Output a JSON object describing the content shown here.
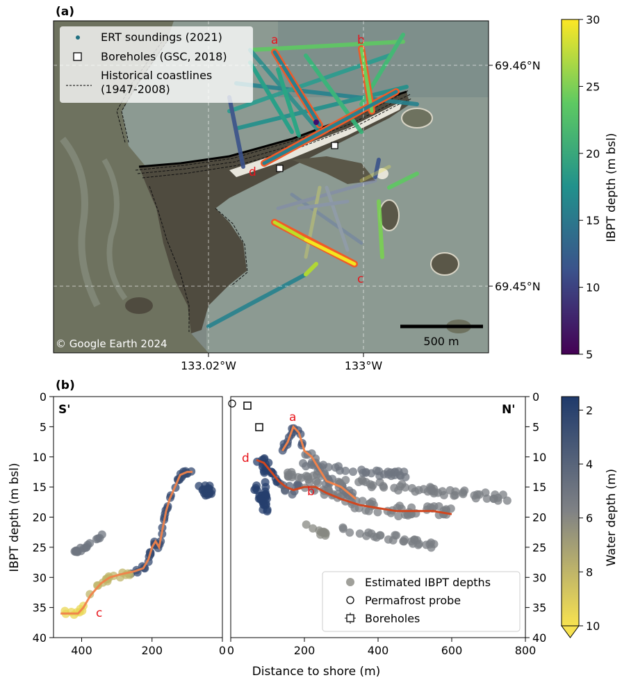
{
  "chart_data": [
    {
      "type": "map",
      "panel_label": "(a)",
      "legend": {
        "ert": "ERT soundings (2021)",
        "boreholes": "Boreholes (GSC, 2018)",
        "coast_line1": "Historical coastlines",
        "coast_line2": "(1947-2008)"
      },
      "lat_ticks": [
        "69.46°N",
        "69.45°N"
      ],
      "lon_ticks": [
        "133.02°W",
        "133°W"
      ],
      "scale_bar": "500 m",
      "copyright": "© Google Earth 2024",
      "profile_labels": [
        "a",
        "b",
        "c",
        "d"
      ],
      "colorbar": {
        "label": "IBPT depth (m bsl)",
        "min": 5,
        "max": 30,
        "ticks": [
          "30",
          "25",
          "20",
          "15",
          "10",
          "5"
        ],
        "colormap": "viridis"
      }
    },
    {
      "type": "scatter",
      "panel_label": "(b)",
      "ylabel": "IBPT depth (m bsl)",
      "xlabel": "Distance to shore (m)",
      "y_ticks": [
        "0",
        "5",
        "10",
        "15",
        "20",
        "25",
        "30",
        "35",
        "40"
      ],
      "ylim": [
        0,
        40
      ],
      "left": {
        "corner_label": "S'",
        "xlim": [
          480,
          0
        ],
        "x_ticks": [
          "400",
          "200",
          "0"
        ],
        "profile_label": "c",
        "profile_c": [
          [
            460,
            36
          ],
          [
            410,
            36
          ],
          [
            395,
            35
          ],
          [
            375,
            33
          ],
          [
            345,
            31
          ],
          [
            320,
            30
          ],
          [
            290,
            29.5
          ],
          [
            250,
            29
          ],
          [
            225,
            28.5
          ],
          [
            210,
            27
          ],
          [
            200,
            25
          ],
          [
            190,
            24
          ],
          [
            180,
            25
          ],
          [
            170,
            22
          ],
          [
            160,
            19
          ],
          [
            150,
            17
          ],
          [
            135,
            15
          ],
          [
            120,
            13
          ],
          [
            100,
            12.5
          ],
          [
            85,
            12.5
          ]
        ]
      },
      "right": {
        "corner_label": "N'",
        "xlim": [
          0,
          800
        ],
        "x_ticks": [
          "0",
          "200",
          "400",
          "600",
          "800"
        ],
        "profile_labels": [
          "a",
          "b",
          "d"
        ],
        "profile_a": [
          [
            140,
            9
          ],
          [
            155,
            7.5
          ],
          [
            170,
            5
          ],
          [
            185,
            6
          ],
          [
            200,
            9
          ],
          [
            220,
            10
          ],
          [
            240,
            12
          ],
          [
            260,
            14
          ],
          [
            280,
            14.5
          ],
          [
            300,
            15
          ],
          [
            320,
            16
          ],
          [
            340,
            17
          ]
        ],
        "profile_d": [
          [
            70,
            10.5
          ],
          [
            90,
            11
          ],
          [
            110,
            12.5
          ],
          [
            130,
            14
          ],
          [
            150,
            15
          ],
          [
            170,
            15.5
          ],
          [
            200,
            15
          ],
          [
            230,
            15
          ],
          [
            260,
            16
          ],
          [
            300,
            17
          ],
          [
            350,
            18
          ],
          [
            400,
            18.5
          ],
          [
            450,
            19
          ],
          [
            500,
            19
          ],
          [
            550,
            19
          ],
          [
            600,
            19.5
          ]
        ]
      },
      "legend": {
        "estimated": "Estimated IBPT depths",
        "probe": "Permafrost probe",
        "boreholes": "Boreholes"
      },
      "colorbar": {
        "label": "Water depth (m)",
        "ticks": [
          "2",
          "4",
          "6",
          "8",
          "10"
        ],
        "min": 1.5,
        "max": 10,
        "colors": [
          "#1f3a6b",
          "#808285",
          "#f7e250"
        ]
      }
    }
  ]
}
